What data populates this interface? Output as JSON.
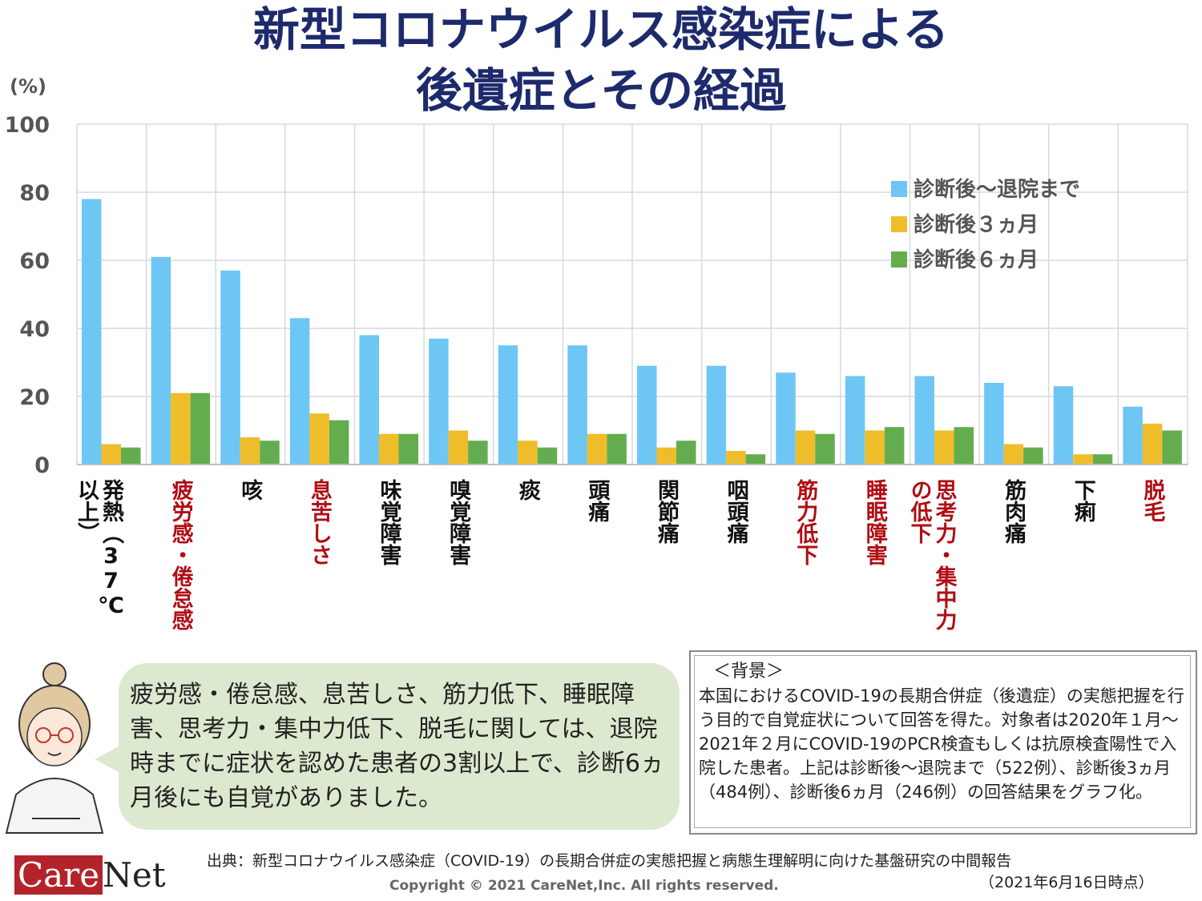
{
  "title": {
    "line1": "新型コロナウイルス感染症による",
    "line2": "後遺症とその経過"
  },
  "colors": {
    "title": "#1d2a6b",
    "red_label": "#b00d14",
    "series1": "#6ec6f5",
    "series2": "#f0bd2a",
    "series3": "#63ad4f"
  },
  "chart_data": {
    "type": "bar",
    "ylabel": "(%)",
    "ylim": [
      0,
      100
    ],
    "yticks": [
      0,
      20,
      40,
      60,
      80,
      100
    ],
    "grid": true,
    "legend_position": "top-right",
    "categories": [
      "発熱（37℃以上）",
      "疲労感・倦怠感",
      "咳",
      "息苦しさ",
      "味覚障害",
      "嗅覚障害",
      "痰",
      "頭痛",
      "関節痛",
      "咽頭痛",
      "筋力低下",
      "睡眠障害",
      "思考力・集中力の低下",
      "筋肉痛",
      "下痢",
      "脱毛"
    ],
    "category_highlight": [
      false,
      true,
      false,
      true,
      false,
      false,
      false,
      false,
      false,
      false,
      true,
      true,
      true,
      false,
      false,
      true
    ],
    "series": [
      {
        "name": "診断後～退院まで",
        "values": [
          78,
          61,
          57,
          43,
          38,
          37,
          35,
          35,
          29,
          29,
          27,
          26,
          26,
          24,
          23,
          17
        ]
      },
      {
        "name": "診断後３ヵ月",
        "values": [
          6,
          21,
          8,
          15,
          9,
          10,
          7,
          9,
          5,
          4,
          10,
          10,
          10,
          6,
          3,
          12
        ]
      },
      {
        "name": "診断後６ヵ月",
        "values": [
          5,
          21,
          7,
          13,
          9,
          7,
          5,
          9,
          7,
          3,
          9,
          11,
          11,
          5,
          3,
          10
        ]
      }
    ]
  },
  "category_display": [
    "発熱（37℃ 以上）",
    "疲労感・倦怠感",
    "咳",
    "息苦しさ",
    "味覚障害",
    "嗅覚障害",
    "痰",
    "頭痛",
    "関節痛",
    "咽頭痛",
    "筋力低下",
    "睡眠障害",
    "思考力・集中力の低下",
    "筋肉痛",
    "下痢",
    "脱毛"
  ],
  "bubble": {
    "text": "疲労感・倦怠感、息苦しさ、筋力低下、睡眠障害、思考力・集中力低下、脱毛に関しては、退院時までに症状を認めた患者の3割以上で、診断6ヵ月後にも自覚がありました。"
  },
  "background": {
    "heading": "＜背景＞",
    "text": "本国におけるCOVID-19の長期合併症（後遺症）の実態把握を行う目的で自覚症状について回答を得た。対象者は2020年１月～2021年２月にCOVID-19のPCR検査もしくは抗原検査陽性で入院した患者。上記は診断後～退院まで（522例）、診断後3ヵ月（484例）、診断後6ヵ月（246例）の回答結果をグラフ化。"
  },
  "source": {
    "text": "出典：新型コロナウイルス感染症（COVID-19）の長期合併症の実態把握と病態生理解明に向けた基盤研究の中間報告",
    "date": "（2021年6月16日時点）"
  },
  "copyright": "Copyright © 2021 CareNet,Inc. All rights reserved.",
  "logo": {
    "care": "Care",
    "net": "Net"
  }
}
